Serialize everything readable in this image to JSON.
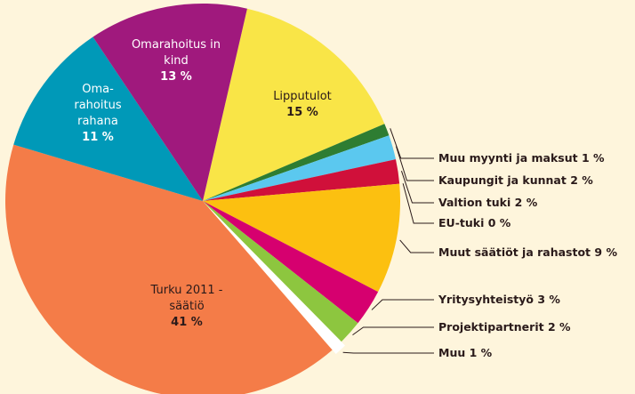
{
  "chart_data": {
    "type": "pie",
    "categories": [
      "Lipputulot",
      "Muu myynti ja maksut",
      "Kaupungit ja kunnat",
      "Valtion tuki",
      "EU-tuki",
      "Muut säätiöt ja rahastot",
      "Yritysyhteistyö",
      "Projektipartnerit",
      "Muu",
      "Turku 2011 -säätiö",
      "Oma-rahoitus rahana",
      "Omarahoitus in kind"
    ],
    "values": [
      15,
      1,
      2,
      2,
      0,
      9,
      3,
      2,
      1,
      41,
      11,
      13
    ],
    "value_labels": [
      "15 %",
      "1 %",
      "2 %",
      "2 %",
      "0 %",
      "9 %",
      "3 %",
      "2 %",
      "1 %",
      "41 %",
      "11 %",
      "13 %"
    ],
    "colors": [
      "#f9e547",
      "#2e7d32",
      "#5bc8ef",
      "#d0103a",
      "#d0103a",
      "#fcc010",
      "#d6006f",
      "#8dc63f",
      "#ffffff",
      "#f47c48",
      "#0099b8",
      "#a0197d"
    ]
  }
}
